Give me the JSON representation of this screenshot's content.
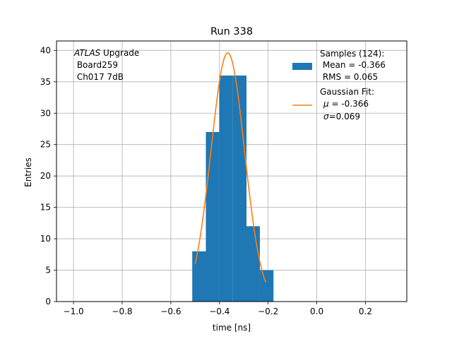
{
  "chart_data": {
    "type": "bar",
    "title": "Run 338",
    "xlabel": "time [ns]",
    "ylabel": "Entries",
    "xlim": [
      -1.07,
      0.37
    ],
    "ylim": [
      0,
      41.5
    ],
    "xticks": [
      -1.0,
      -0.8,
      -0.6,
      -0.4,
      -0.2,
      0.0,
      0.2
    ],
    "xtick_labels": [
      "−1.0",
      "−0.8",
      "−0.6",
      "−0.4",
      "−0.2",
      "0.0",
      "0.2"
    ],
    "yticks": [
      0,
      5,
      10,
      15,
      20,
      25,
      30,
      35,
      40
    ],
    "ytick_labels": [
      "0",
      "5",
      "10",
      "15",
      "20",
      "25",
      "30",
      "35",
      "40"
    ],
    "grid": true,
    "legend_position": "top-right",
    "histogram": {
      "bin_edges": [
        -0.512,
        -0.456,
        -0.401,
        -0.345,
        -0.289,
        -0.234,
        -0.178
      ],
      "counts": [
        8,
        27,
        36,
        36,
        12,
        5
      ],
      "color": "#1f77b4"
    },
    "fit": {
      "mu": -0.366,
      "sigma": 0.069,
      "amplitude": 39.6,
      "x_range": [
        -0.5,
        -0.21
      ],
      "color": "#ff7f0e"
    },
    "annotation": {
      "italic": "ATLAS",
      "line1_rest": " Upgrade",
      "line2": " Board259",
      "line3": " Ch017 7dB"
    },
    "legend": {
      "samples": {
        "line1": "Samples (124):",
        "line2": " Mean = -0.366",
        "line3": " RMS = 0.065"
      },
      "fit": {
        "line1": "Gaussian Fit:",
        "line2_sym": "μ",
        "line2_rest": " = -0.366",
        "line3_sym": "σ",
        "line3_rest": "=0.069"
      }
    }
  }
}
